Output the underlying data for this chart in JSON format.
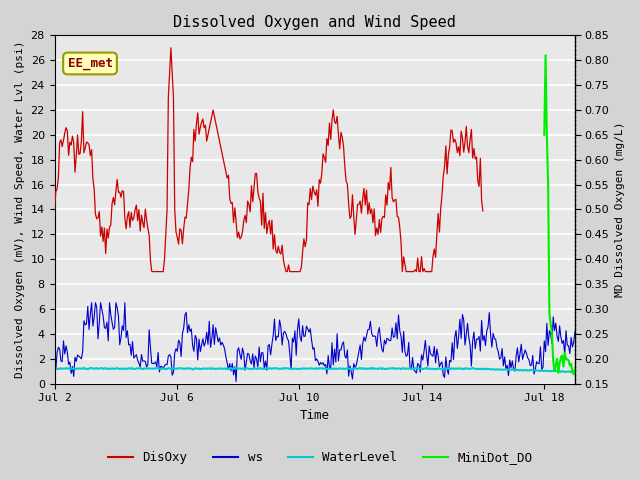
{
  "title": "Dissolved Oxygen and Wind Speed",
  "ylabel_left": "Dissolved Oxygen (mV), Wind Speed, Water Lvl (psi)",
  "ylabel_right": "MD Dissolved Oxygen (mg/L)",
  "xlabel": "Time",
  "xlim": [
    2,
    19
  ],
  "ylim_left": [
    0,
    28
  ],
  "ylim_right": [
    0.15,
    0.85
  ],
  "annotation_text": "EE_met",
  "fig_bg_color": "#d4d4d4",
  "plot_bg_color": "#e8e8e8",
  "grid_color": "#ffffff",
  "colors": {
    "DisOxy": "#cc0000",
    "ws": "#0000cc",
    "WaterLevel": "#00cccc",
    "MiniDot_DO": "#00ee00"
  },
  "xtick_labels": [
    "Jul 2",
    "Jul 6",
    "Jul 10",
    "Jul 14",
    "Jul 18"
  ],
  "xtick_positions": [
    2,
    6,
    10,
    14,
    18
  ],
  "yticks_left": [
    0,
    2,
    4,
    6,
    8,
    10,
    12,
    14,
    16,
    18,
    20,
    22,
    24,
    26,
    28
  ],
  "yticks_right": [
    0.15,
    0.2,
    0.25,
    0.3,
    0.35,
    0.4,
    0.45,
    0.5,
    0.55,
    0.6,
    0.65,
    0.7,
    0.75,
    0.8,
    0.85
  ],
  "title_fontsize": 11,
  "axis_fontsize": 8,
  "tick_fontsize": 8,
  "legend_fontsize": 9
}
